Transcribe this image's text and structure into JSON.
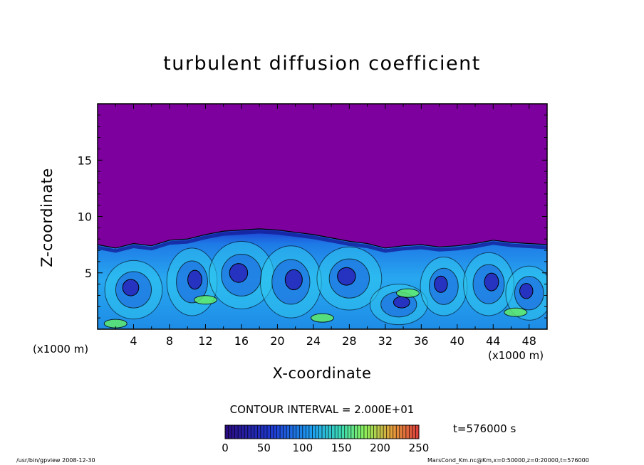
{
  "chart_data": {
    "type": "heatmap",
    "title": "turbulent diffusion coefficient",
    "xlabel": "X-coordinate",
    "ylabel": "Z-coordinate",
    "x_unit": "(x1000 m)",
    "x_ticks": [
      "4",
      "8",
      "12",
      "16",
      "20",
      "24",
      "28",
      "32",
      "36",
      "40",
      "44",
      "48"
    ],
    "y_ticks": [
      "5",
      "10",
      "15"
    ],
    "xlim": [
      0,
      50
    ],
    "ylim": [
      0,
      20
    ],
    "contour_interval": "CONTOUR INTERVAL = 2.000E+01",
    "colorbar": {
      "ticks": [
        "0",
        "50",
        "100",
        "150",
        "200",
        "250"
      ],
      "range": [
        0,
        250
      ]
    },
    "time_label": "t=576000 s",
    "mixed_layer_top": [
      [
        0,
        7.5
      ],
      [
        2,
        7.2
      ],
      [
        4,
        7.6
      ],
      [
        6,
        7.4
      ],
      [
        8,
        7.9
      ],
      [
        10,
        8.0
      ],
      [
        12,
        8.4
      ],
      [
        14,
        8.7
      ],
      [
        16,
        8.8
      ],
      [
        18,
        8.9
      ],
      [
        20,
        8.8
      ],
      [
        22,
        8.6
      ],
      [
        24,
        8.4
      ],
      [
        26,
        8.1
      ],
      [
        28,
        7.8
      ],
      [
        30,
        7.6
      ],
      [
        32,
        7.2
      ],
      [
        34,
        7.4
      ],
      [
        36,
        7.5
      ],
      [
        38,
        7.3
      ],
      [
        40,
        7.4
      ],
      [
        42,
        7.6
      ],
      [
        44,
        7.9
      ],
      [
        46,
        7.7
      ],
      [
        48,
        7.6
      ],
      [
        50,
        7.5
      ]
    ]
  },
  "colors": {
    "background": "#7d009e",
    "low": "#2a1ec8",
    "mid": "#1e8cf0",
    "high": "#32e6f0",
    "peak": "#64f064"
  },
  "footer": {
    "left": "/usr/bin/gpview   2008-12-30",
    "right": "MarsCond_Km.nc@Km,x=0:50000,z=0:20000,t=576000"
  }
}
